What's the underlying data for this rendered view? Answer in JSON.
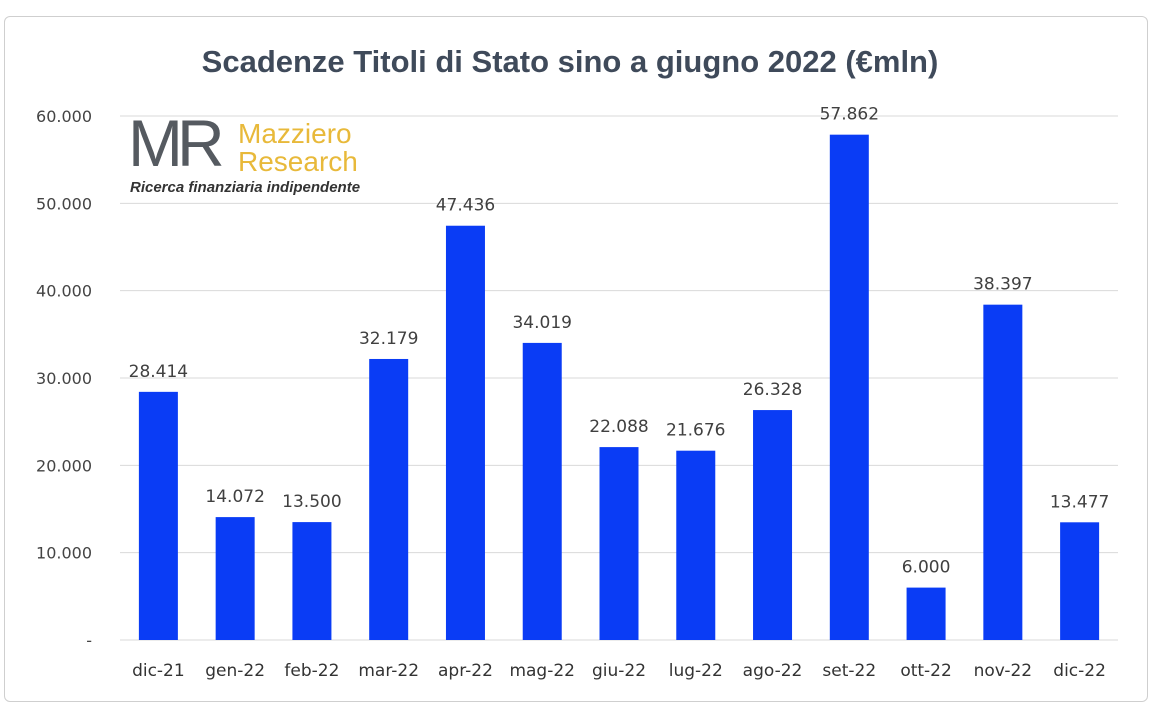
{
  "chart_data": {
    "type": "bar",
    "title": "Scadenze Titoli di Stato sino a giugno 2022 (€mln)",
    "categories": [
      "dic-21",
      "gen-22",
      "feb-22",
      "mar-22",
      "apr-22",
      "mag-22",
      "giu-22",
      "lug-22",
      "ago-22",
      "set-22",
      "ott-22",
      "nov-22",
      "dic-22"
    ],
    "values": [
      28414,
      14072,
      13500,
      32179,
      47436,
      34019,
      22088,
      21676,
      26328,
      57862,
      6000,
      38397,
      13477
    ],
    "value_labels": [
      "28.414",
      "14.072",
      "13.500",
      "32.179",
      "47.436",
      "34.019",
      "22.088",
      "21.676",
      "26.328",
      "57.862",
      "6.000",
      "38.397",
      "13.477"
    ],
    "ylim": [
      0,
      60000
    ],
    "yticks": [
      0,
      10000,
      20000,
      30000,
      40000,
      50000,
      60000
    ],
    "ytick_labels": [
      "-",
      "10.000",
      "20.000",
      "30.000",
      "40.000",
      "50.000",
      "60.000"
    ],
    "grid": true,
    "bar_color": "#0a3cf5",
    "xlabel": "",
    "ylabel": ""
  },
  "logo": {
    "mark": "MR",
    "name_line1": "Mazziero",
    "name_line2": "Research",
    "tagline": "Ricerca finanziaria indipendente"
  }
}
